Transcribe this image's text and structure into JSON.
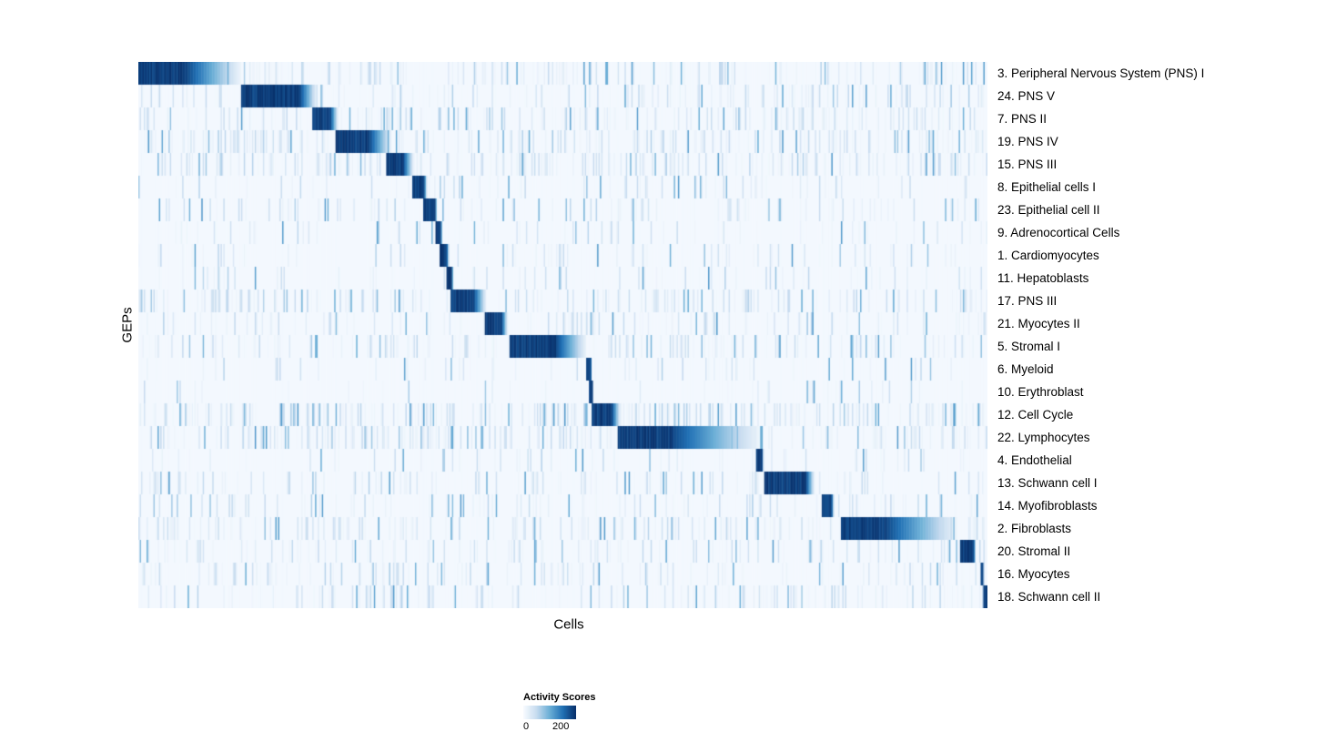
{
  "chart_data": {
    "type": "heatmap",
    "title": "",
    "xlabel": "Cells",
    "ylabel": "GEPs",
    "colorbar": {
      "title": "Activity Scores",
      "min_label": "0",
      "max_label": "200",
      "colors": [
        "#f7fbff",
        "#c6dbef",
        "#6baed6",
        "#2171b5",
        "#08306b"
      ]
    },
    "n_cols": 620,
    "noise_seed": 42,
    "rows": [
      {
        "label": "3. Peripheral Nervous System (PNS) I",
        "block_start": 0.0,
        "block_end": 0.057,
        "fade_end": 0.12,
        "noise": 0.45,
        "clusters": [
          [
            0.125,
            0.205,
            0.8
          ],
          [
            0.3,
            0.44,
            0.5
          ]
        ]
      },
      {
        "label": "24. PNS V",
        "block_start": 0.121,
        "block_end": 0.19,
        "fade_end": 0.21,
        "noise": 0.35,
        "clusters": [
          [
            0.0,
            0.06,
            0.5
          ]
        ]
      },
      {
        "label": "7. PNS II",
        "block_start": 0.204,
        "block_end": 0.226,
        "fade_end": 0.235,
        "noise": 0.4,
        "clusters": [
          [
            0.73,
            0.8,
            0.7
          ]
        ]
      },
      {
        "label": "19. PNS IV",
        "block_start": 0.232,
        "block_end": 0.272,
        "fade_end": 0.298,
        "noise": 0.55,
        "clusters": [
          [
            0.0,
            0.05,
            0.6
          ],
          [
            0.12,
            0.21,
            0.7
          ]
        ]
      },
      {
        "label": "15. PNS III",
        "block_start": 0.292,
        "block_end": 0.312,
        "fade_end": 0.324,
        "noise": 0.55,
        "clusters": [
          [
            0.55,
            0.65,
            0.5
          ]
        ]
      },
      {
        "label": "8. Epithelial cells I",
        "block_start": 0.322,
        "block_end": 0.336,
        "fade_end": 0.34,
        "noise": 0.2,
        "clusters": []
      },
      {
        "label": "23. Epithelial cell II",
        "block_start": 0.335,
        "block_end": 0.349,
        "fade_end": 0.352,
        "noise": 0.25,
        "clusters": [
          [
            0.56,
            0.6,
            0.5
          ]
        ]
      },
      {
        "label": "9. Adrenocortical Cells",
        "block_start": 0.349,
        "block_end": 0.356,
        "fade_end": 0.358,
        "noise": 0.15,
        "clusters": []
      },
      {
        "label": "1. Cardiomyocytes",
        "block_start": 0.354,
        "block_end": 0.363,
        "fade_end": 0.366,
        "noise": 0.2,
        "clusters": []
      },
      {
        "label": "11. Hepatoblasts",
        "block_start": 0.363,
        "block_end": 0.369,
        "fade_end": 0.371,
        "noise": 0.15,
        "clusters": []
      },
      {
        "label": "17. PNS III",
        "block_start": 0.368,
        "block_end": 0.395,
        "fade_end": 0.41,
        "noise": 0.45,
        "clusters": [
          [
            0.0,
            0.02,
            0.8
          ]
        ]
      },
      {
        "label": "21. Myocytes II",
        "block_start": 0.408,
        "block_end": 0.428,
        "fade_end": 0.435,
        "noise": 0.3,
        "clusters": [
          [
            0.99,
            1.0,
            0.9
          ]
        ]
      },
      {
        "label": "5. Stromal I",
        "block_start": 0.437,
        "block_end": 0.492,
        "fade_end": 0.528,
        "noise": 0.4,
        "clusters": [
          [
            0.3,
            0.34,
            0.5
          ],
          [
            0.83,
            0.87,
            0.5
          ]
        ]
      },
      {
        "label": "6. Myeloid",
        "block_start": 0.528,
        "block_end": 0.533,
        "fade_end": 0.534,
        "noise": 0.15,
        "clusters": []
      },
      {
        "label": "10. Erythroblast",
        "block_start": 0.531,
        "block_end": 0.535,
        "fade_end": 0.536,
        "noise": 0.12,
        "clusters": []
      },
      {
        "label": "12. Cell Cycle",
        "block_start": 0.534,
        "block_end": 0.558,
        "fade_end": 0.568,
        "noise": 0.6,
        "clusters": [
          [
            0.2,
            0.23,
            0.7
          ],
          [
            0.29,
            0.34,
            0.7
          ],
          [
            0.36,
            0.42,
            0.6
          ],
          [
            0.84,
            0.94,
            0.6
          ]
        ]
      },
      {
        "label": "22. Lymphocytes",
        "block_start": 0.564,
        "block_end": 0.63,
        "fade_end": 0.732,
        "noise": 0.55,
        "clusters": [
          [
            0.28,
            0.35,
            0.7
          ],
          [
            0.37,
            0.42,
            0.6
          ],
          [
            0.85,
            0.95,
            0.5
          ]
        ]
      },
      {
        "label": "4. Endothelial",
        "block_start": 0.727,
        "block_end": 0.735,
        "fade_end": 0.737,
        "noise": 0.15,
        "clusters": []
      },
      {
        "label": "13. Schwann cell I",
        "block_start": 0.737,
        "block_end": 0.787,
        "fade_end": 0.797,
        "noise": 0.35,
        "clusters": [
          [
            0.0,
            0.05,
            0.5
          ]
        ]
      },
      {
        "label": "14. Myofibroblasts",
        "block_start": 0.805,
        "block_end": 0.817,
        "fade_end": 0.82,
        "noise": 0.25,
        "clusters": []
      },
      {
        "label": "2. Fibroblasts",
        "block_start": 0.828,
        "block_end": 0.882,
        "fade_end": 0.965,
        "noise": 0.45,
        "clusters": [
          [
            0.52,
            0.57,
            0.7
          ],
          [
            0.3,
            0.35,
            0.5
          ]
        ]
      },
      {
        "label": "20. Stromal II",
        "block_start": 0.968,
        "block_end": 0.985,
        "fade_end": 0.987,
        "noise": 0.35,
        "clusters": []
      },
      {
        "label": "16. Myocytes",
        "block_start": 0.992,
        "block_end": 0.996,
        "fade_end": 0.997,
        "noise": 0.3,
        "clusters": [
          [
            0.35,
            0.37,
            0.6
          ],
          [
            0.41,
            0.43,
            0.6
          ]
        ]
      },
      {
        "label": "18. Schwann cell II",
        "block_start": 0.996,
        "block_end": 1.0,
        "fade_end": 1.0,
        "noise": 0.35,
        "clusters": [
          [
            0.74,
            0.8,
            0.6
          ],
          [
            0.21,
            0.23,
            0.5
          ]
        ]
      }
    ]
  }
}
